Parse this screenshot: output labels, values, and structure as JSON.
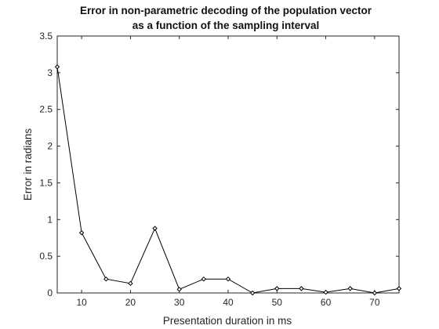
{
  "chart_data": {
    "type": "line",
    "title": [
      "Error in non-parametric decoding of the population vector",
      "as a function of the sampling interval"
    ],
    "xlabel": "Presentation duration in ms",
    "ylabel": "Error in radians",
    "xlim": [
      5,
      75
    ],
    "ylim": [
      0,
      3.5
    ],
    "xticks": [
      10,
      20,
      30,
      40,
      50,
      60,
      70
    ],
    "yticks": [
      0,
      0.5,
      1,
      1.5,
      2,
      2.5,
      3,
      3.5
    ],
    "xtick_labels": [
      "10",
      "20",
      "30",
      "40",
      "50",
      "60",
      "70"
    ],
    "ytick_labels": [
      "0",
      "0.5",
      "1",
      "1.5",
      "2",
      "2.5",
      "3",
      "3.5"
    ],
    "grid": false,
    "marker": "diamond",
    "line_color": "#000000",
    "series": [
      {
        "x": [
          5,
          10,
          15,
          20,
          25,
          30,
          35,
          40,
          45,
          50,
          55,
          60,
          65,
          70,
          75
        ],
        "y": [
          3.08,
          0.82,
          0.19,
          0.13,
          0.88,
          0.05,
          0.19,
          0.19,
          0.0,
          0.06,
          0.06,
          0.01,
          0.06,
          0.0,
          0.06
        ]
      }
    ]
  }
}
